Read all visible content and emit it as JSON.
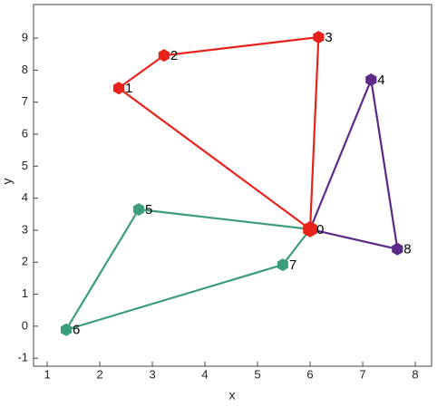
{
  "chart_data": {
    "type": "scatter",
    "xlabel": "x",
    "ylabel": "y",
    "xlim": [
      0.74,
      8.31
    ],
    "ylim": [
      -1.25,
      10.05
    ],
    "xticks": [
      1,
      2,
      3,
      4,
      5,
      6,
      7,
      8
    ],
    "yticks": [
      -1,
      0,
      1,
      2,
      3,
      4,
      5,
      6,
      7,
      8,
      9
    ],
    "series": [
      {
        "color": "#e8221b",
        "x": [
          6.0,
          2.36,
          3.22,
          6.16,
          6.0
        ],
        "y": [
          3.03,
          7.44,
          8.46,
          9.03,
          3.03
        ],
        "labels": [
          "0",
          "1",
          "2",
          "3",
          null
        ]
      },
      {
        "color": "#5b2a86",
        "x": [
          6.0,
          7.16,
          7.66,
          6.0
        ],
        "y": [
          3.03,
          7.7,
          2.41,
          3.03
        ],
        "labels": [
          null,
          "4",
          "8",
          null
        ]
      },
      {
        "color": "#3c9d7b",
        "x": [
          6.0,
          2.74,
          1.36,
          5.48,
          6.0
        ],
        "y": [
          3.03,
          3.65,
          -0.11,
          1.92,
          3.03
        ],
        "labels": [
          null,
          "5",
          "6",
          "7",
          null
        ]
      }
    ]
  }
}
